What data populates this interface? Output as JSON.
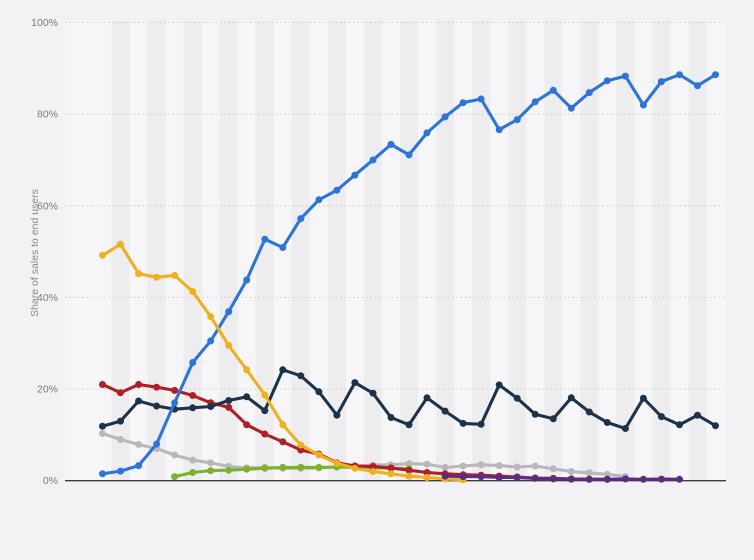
{
  "chart_data": {
    "type": "line",
    "title": "",
    "x_axis": {
      "labels_visible": false,
      "n_points": 35
    },
    "y_axis": {
      "title": "Share of sales to end users",
      "range": [
        0,
        100
      ],
      "ticks": [
        {
          "value": 0,
          "label": "0%"
        },
        {
          "value": 20,
          "label": "20%"
        },
        {
          "value": 40,
          "label": "40%"
        },
        {
          "value": 60,
          "label": "60%"
        },
        {
          "value": 80,
          "label": "80%"
        },
        {
          "value": 100,
          "label": "100%"
        }
      ],
      "grid": "dotted"
    },
    "legend": {
      "visible": false
    },
    "series": [
      {
        "name": "gray",
        "color": "#b9b7bc",
        "start_index": 0,
        "values": [
          10.3,
          9.0,
          7.9,
          7.0,
          5.6,
          4.5,
          3.9,
          3.1,
          2.8,
          2.9,
          2.7,
          2.7,
          2.8,
          3.0,
          3.2,
          3.4,
          3.5,
          3.7,
          3.6,
          2.9,
          3.2,
          3.5,
          3.3,
          3.0,
          3.2,
          2.6,
          2.0,
          1.7,
          1.4,
          0.9
        ]
      },
      {
        "name": "green",
        "color": "#7db32b",
        "start_index": 4,
        "values": [
          0.9,
          1.8,
          2.2,
          2.3,
          2.5,
          2.7,
          2.9,
          2.9,
          2.9,
          3.0,
          2.9,
          2.8,
          2.7,
          2.6
        ]
      },
      {
        "name": "red",
        "color": "#b01f24",
        "start_index": 0,
        "values": [
          21.0,
          19.2,
          21.0,
          20.4,
          19.7,
          18.6,
          17.0,
          16.0,
          12.2,
          10.2,
          8.5,
          6.7,
          5.8,
          3.9,
          3.2,
          3.1,
          2.8,
          2.3,
          1.8,
          1.5,
          1.3,
          1.2,
          1.0,
          0.8,
          0.6,
          0.5,
          0.4,
          0.3,
          0.3
        ]
      },
      {
        "name": "navy",
        "color": "#1c3349",
        "start_index": 0,
        "values": [
          11.9,
          13.0,
          17.4,
          16.3,
          15.6,
          15.9,
          16.2,
          17.5,
          18.3,
          15.3,
          24.2,
          22.9,
          19.4,
          14.3,
          21.4,
          19.1,
          13.8,
          12.2,
          18.1,
          15.2,
          12.5,
          12.3,
          20.9,
          18.0,
          14.5,
          13.5,
          18.1,
          15.0,
          12.7,
          11.4,
          18.0,
          14.0,
          12.2,
          14.3,
          12.0
        ]
      },
      {
        "name": "blue",
        "color": "#2c74dd",
        "start_index": 0,
        "values": [
          1.5,
          2.1,
          3.3,
          8.0,
          17.0,
          25.8,
          30.5,
          36.9,
          43.8,
          52.7,
          50.9,
          57.2,
          61.3,
          63.4,
          66.7,
          70.0,
          73.4,
          71.1,
          75.9,
          79.4,
          82.5,
          83.3,
          76.6,
          78.8,
          82.7,
          85.2,
          81.3,
          84.7,
          87.3,
          88.3,
          82.0,
          87.1,
          88.6,
          86.2,
          88.6
        ]
      },
      {
        "name": "yellow",
        "color": "#f2af1d",
        "start_index": 0,
        "values": [
          49.2,
          51.6,
          45.2,
          44.4,
          44.8,
          41.3,
          35.8,
          29.5,
          24.2,
          18.7,
          12.2,
          7.8,
          5.6,
          3.8,
          2.7,
          2.0,
          1.5,
          1.0,
          0.7,
          0.4,
          0.2
        ]
      },
      {
        "name": "purple",
        "color": "#5b2c83",
        "start_index": 19,
        "values": [
          1.0,
          0.9,
          0.9,
          0.7,
          0.7,
          0.5,
          0.4,
          0.35,
          0.3,
          0.3,
          0.4,
          0.3,
          0.35,
          0.3
        ]
      }
    ],
    "style": {
      "page_background": "#f2f2f4",
      "plot_background": "#f6f6f8",
      "stripe_color": "#ededf0",
      "gridline_color": "#c9c9cc",
      "axis_line_color": "#3c3c3e",
      "tick_label_color": "#7b7a80",
      "axis_title_color": "#8a898e"
    }
  }
}
